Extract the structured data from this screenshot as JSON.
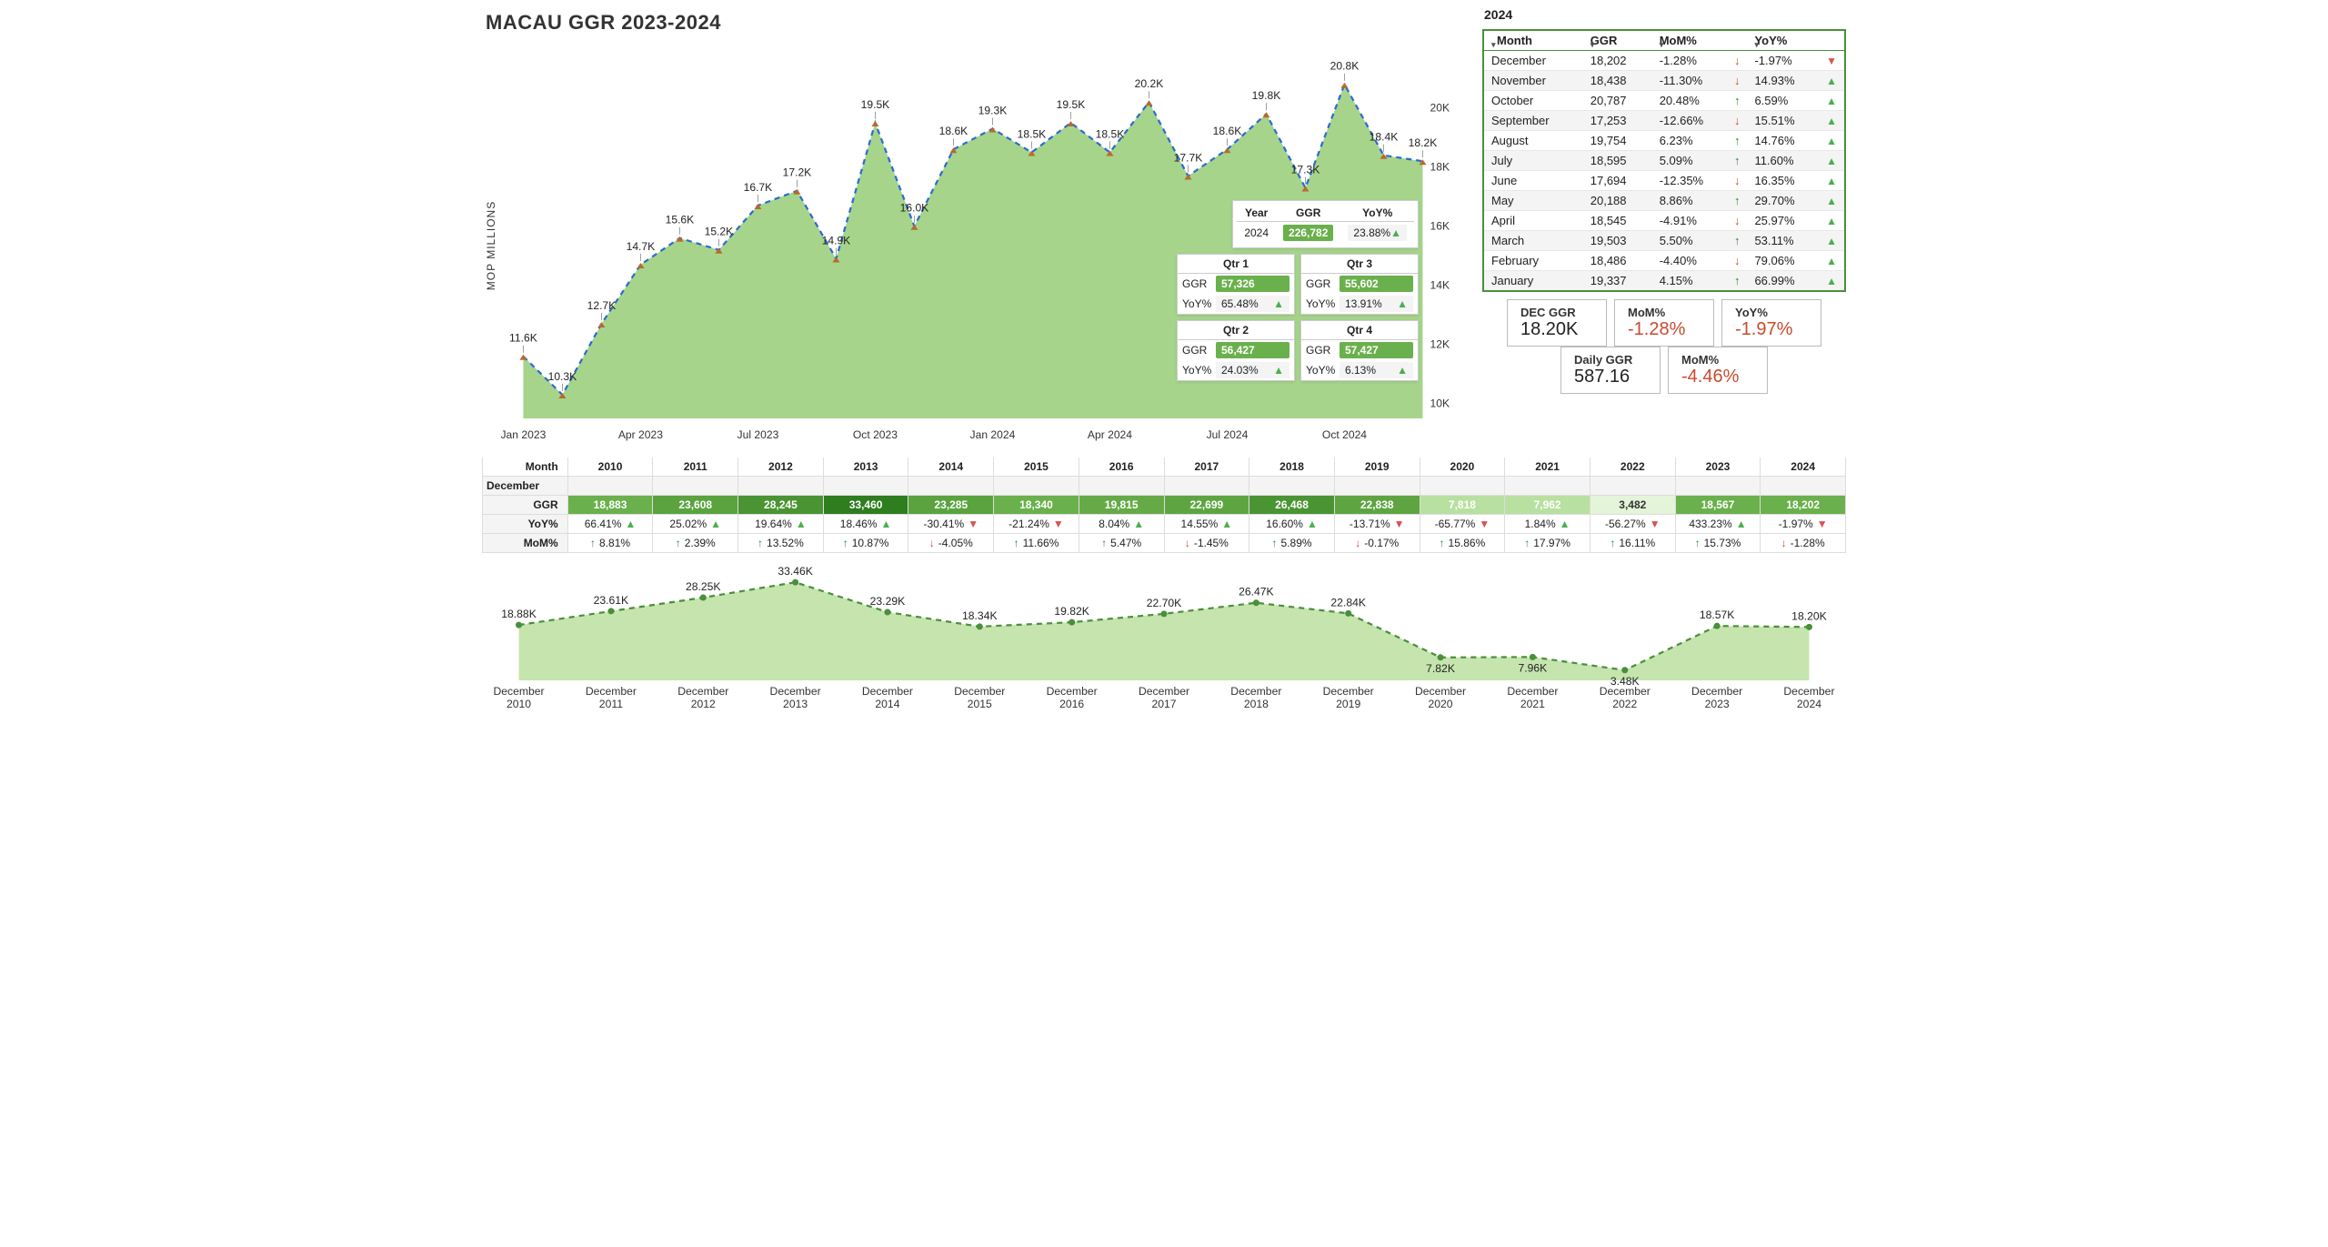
{
  "title": "MACAU GGR 2023-2024",
  "main_chart": {
    "type": "area",
    "y_title": "MOP MILLIONS",
    "months": [
      "Jan 2023",
      "Feb 2023",
      "Mar 2023",
      "Apr 2023",
      "May 2023",
      "Jun 2023",
      "Jul 2023",
      "Aug 2023",
      "Sep 2023",
      "Oct 2023",
      "Nov 2023",
      "Dec 2023",
      "Jan 2024",
      "Feb 2024",
      "Mar 2024",
      "Apr 2024",
      "May 2024",
      "Jun 2024",
      "Jul 2024",
      "Aug 2024",
      "Sep 2024",
      "Oct 2024",
      "Nov 2024",
      "Dec 2024"
    ],
    "values": [
      11600,
      10300,
      12700,
      14700,
      15600,
      15200,
      16700,
      17200,
      14900,
      19500,
      16000,
      18600,
      19300,
      18500,
      19500,
      18500,
      20200,
      17700,
      18600,
      19800,
      17300,
      20800,
      18400,
      18200
    ],
    "labels": [
      "11.6K",
      "10.3K",
      "12.7K",
      "14.7K",
      "15.6K",
      "15.2K",
      "16.7K",
      "17.2K",
      "14.9K",
      "19.5K",
      "16.0K",
      "18.6K",
      "19.3K",
      "18.5K",
      "19.5K",
      "18.5K",
      "20.2K",
      "17.7K",
      "18.6K",
      "19.8K",
      "17.3K",
      "20.8K",
      "18.4K",
      "18.2K"
    ],
    "x_ticks": [
      "Jan 2023",
      "Apr 2023",
      "Jul 2023",
      "Oct 2023",
      "Jan 2024",
      "Apr 2024",
      "Jul 2024",
      "Oct 2024"
    ],
    "y_ticks": [
      10000,
      12000,
      14000,
      16000,
      18000,
      20000
    ],
    "y_tick_labels": [
      "10K",
      "12K",
      "14K",
      "16K",
      "18K",
      "20K"
    ],
    "ylim": [
      9500,
      21500
    ],
    "area_fill": "#a6d48a",
    "line_color": "#2a6bd4",
    "line_dash": "6 5",
    "marker_color": "#b86a2f",
    "label_fontsize": 12
  },
  "overlay": {
    "year_header": [
      "Year",
      "GGR",
      "YoY%"
    ],
    "year": {
      "year": "2024",
      "ggr": "226,782",
      "yoy": "23.88%",
      "dir": "up"
    },
    "quarters": [
      {
        "name": "Qtr 1",
        "ggr": "57,326",
        "yoy": "65.48%",
        "dir": "up"
      },
      {
        "name": "Qtr 2",
        "ggr": "56,427",
        "yoy": "24.03%",
        "dir": "up"
      },
      {
        "name": "Qtr 3",
        "ggr": "55,602",
        "yoy": "13.91%",
        "dir": "up"
      },
      {
        "name": "Qtr 4",
        "ggr": "57,427",
        "yoy": "6.13%",
        "dir": "up"
      }
    ],
    "ggr_label": "GGR",
    "yoy_label": "YoY%"
  },
  "right": {
    "year_label": "2024",
    "headers": [
      "Month",
      "GGR",
      "MoM%",
      "YoY%"
    ],
    "rows": [
      {
        "month": "December",
        "ggr": "18,202",
        "mom": "-1.28%",
        "mom_dir": "down",
        "yoy": "-1.97%",
        "yoy_dir": "down"
      },
      {
        "month": "November",
        "ggr": "18,438",
        "mom": "-11.30%",
        "mom_dir": "down",
        "yoy": "14.93%",
        "yoy_dir": "up"
      },
      {
        "month": "October",
        "ggr": "20,787",
        "mom": "20.48%",
        "mom_dir": "up",
        "yoy": "6.59%",
        "yoy_dir": "up"
      },
      {
        "month": "September",
        "ggr": "17,253",
        "mom": "-12.66%",
        "mom_dir": "down",
        "yoy": "15.51%",
        "yoy_dir": "up"
      },
      {
        "month": "August",
        "ggr": "19,754",
        "mom": "6.23%",
        "mom_dir": "up",
        "yoy": "14.76%",
        "yoy_dir": "up"
      },
      {
        "month": "July",
        "ggr": "18,595",
        "mom": "5.09%",
        "mom_dir": "up",
        "yoy": "11.60%",
        "yoy_dir": "up"
      },
      {
        "month": "June",
        "ggr": "17,694",
        "mom": "-12.35%",
        "mom_dir": "down",
        "yoy": "16.35%",
        "yoy_dir": "up"
      },
      {
        "month": "May",
        "ggr": "20,188",
        "mom": "8.86%",
        "mom_dir": "up",
        "yoy": "29.70%",
        "yoy_dir": "up"
      },
      {
        "month": "April",
        "ggr": "18,545",
        "mom": "-4.91%",
        "mom_dir": "down",
        "yoy": "25.97%",
        "yoy_dir": "up"
      },
      {
        "month": "March",
        "ggr": "19,503",
        "mom": "5.50%",
        "mom_dir": "up",
        "yoy": "53.11%",
        "yoy_dir": "up"
      },
      {
        "month": "February",
        "ggr": "18,486",
        "mom": "-4.40%",
        "mom_dir": "down",
        "yoy": "79.06%",
        "yoy_dir": "up"
      },
      {
        "month": "January",
        "ggr": "19,337",
        "mom": "4.15%",
        "mom_dir": "up",
        "yoy": "66.99%",
        "yoy_dir": "up"
      }
    ]
  },
  "kpi": [
    [
      {
        "label": "DEC GGR",
        "value": "18.20K",
        "cls": ""
      },
      {
        "label": "MoM%",
        "value": "-1.28%",
        "cls": "neg"
      },
      {
        "label": "YoY%",
        "value": "-1.97%",
        "cls": "neg"
      }
    ],
    [
      {
        "label": "Daily GGR",
        "value": "587.16",
        "cls": ""
      },
      {
        "label": "MoM%",
        "value": "-4.46%",
        "cls": "neg"
      }
    ]
  ],
  "dec_table": {
    "row_header": "Month",
    "sub_header": "December",
    "ggr_label": "GGR",
    "yoy_label": "YoY%",
    "mom_label": "MoM%",
    "years": [
      "2010",
      "2011",
      "2012",
      "2013",
      "2014",
      "2015",
      "2016",
      "2017",
      "2018",
      "2019",
      "2020",
      "2021",
      "2022",
      "2023",
      "2024"
    ],
    "ggr": [
      "18,883",
      "23,608",
      "28,245",
      "33,460",
      "23,285",
      "18,340",
      "19,815",
      "22,699",
      "26,468",
      "22,838",
      "7,818",
      "7,962",
      "3,482",
      "18,567",
      "18,202"
    ],
    "ggr_colors": [
      "#6ab04c",
      "#5aa33f",
      "#4a9433",
      "#2e7d1f",
      "#5aa33f",
      "#6ab04c",
      "#66aa48",
      "#5ea542",
      "#4a9433",
      "#5ea542",
      "#b8e0a0",
      "#b8e0a0",
      "#e4f4d8",
      "#6ab04c",
      "#6ab04c"
    ],
    "yoy": [
      [
        "66.41%",
        "up"
      ],
      [
        "25.02%",
        "up"
      ],
      [
        "19.64%",
        "up"
      ],
      [
        "18.46%",
        "up"
      ],
      [
        "-30.41%",
        "down"
      ],
      [
        "-21.24%",
        "down"
      ],
      [
        "8.04%",
        "up"
      ],
      [
        "14.55%",
        "up"
      ],
      [
        "16.60%",
        "up"
      ],
      [
        "-13.71%",
        "down"
      ],
      [
        "-65.77%",
        "down"
      ],
      [
        "1.84%",
        "up"
      ],
      [
        "-56.27%",
        "down"
      ],
      [
        "433.23%",
        "up"
      ],
      [
        "-1.97%",
        "down"
      ]
    ],
    "mom": [
      [
        "8.81%",
        "up"
      ],
      [
        "2.39%",
        "up"
      ],
      [
        "13.52%",
        "up"
      ],
      [
        "10.87%",
        "up"
      ],
      [
        "-4.05%",
        "down"
      ],
      [
        "11.66%",
        "up"
      ],
      [
        "5.47%",
        "up"
      ],
      [
        "-1.45%",
        "down"
      ],
      [
        "5.89%",
        "up"
      ],
      [
        "-0.17%",
        "down"
      ],
      [
        "15.86%",
        "up"
      ],
      [
        "17.97%",
        "up"
      ],
      [
        "16.11%",
        "up"
      ],
      [
        "15.73%",
        "up"
      ],
      [
        "-1.28%",
        "down"
      ]
    ]
  },
  "dec_chart": {
    "type": "area",
    "x_labels": [
      "December 2010",
      "December 2011",
      "December 2012",
      "December 2013",
      "December 2014",
      "December 2015",
      "December 2016",
      "December 2017",
      "December 2018",
      "December 2019",
      "December 2020",
      "December 2021",
      "December 2022",
      "December 2023",
      "December 2024"
    ],
    "values": [
      18883,
      23608,
      28245,
      33460,
      23285,
      18340,
      19815,
      22699,
      26468,
      22838,
      7818,
      7962,
      3482,
      18567,
      18202
    ],
    "labels": [
      "18.88K",
      "23.61K",
      "28.25K",
      "33.46K",
      "23.29K",
      "18.34K",
      "19.82K",
      "22.70K",
      "26.47K",
      "22.84K",
      "7.82K",
      "7.96K",
      "3.48K",
      "18.57K",
      "18.20K"
    ],
    "ylim": [
      0,
      36000
    ],
    "area_fill": "#c5e4ae",
    "line_color": "#4a8f3a",
    "line_dash": "6 5",
    "marker_color": "#4a8f3a"
  }
}
